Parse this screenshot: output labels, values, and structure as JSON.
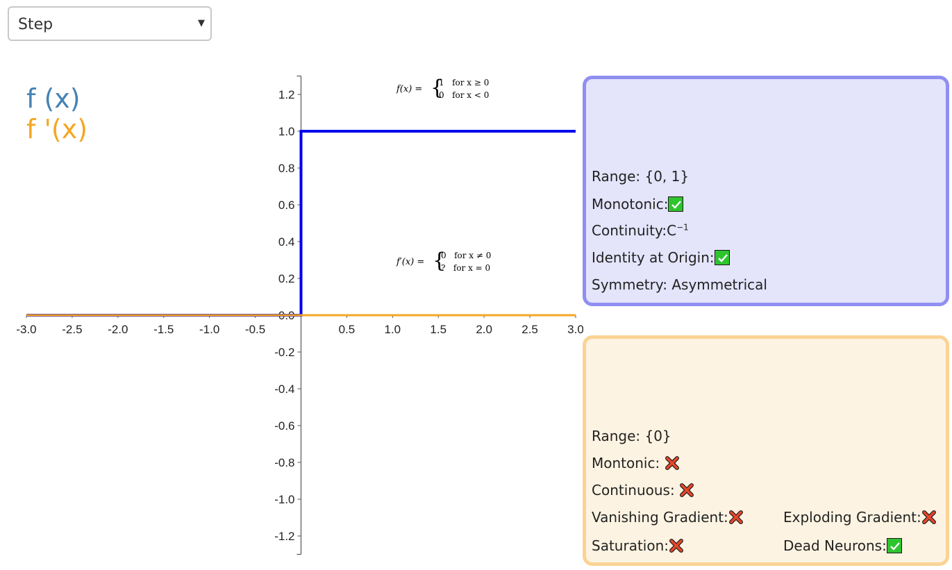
{
  "selector": {
    "value": "Step"
  },
  "legend": {
    "f": "f (x)",
    "fprime": "f '(x)"
  },
  "colors": {
    "f": "#0000ee",
    "fprime": "#f5a623",
    "legend_f": "#4682b4",
    "panel_f_border": "#8f8ff2",
    "panel_fp_border": "#fad394"
  },
  "formulas": {
    "f_lhs": "f(x) =",
    "f_case1": "1   for x ≥ 0",
    "f_case2": "0   for x < 0",
    "fp_lhs": "f′(x) =",
    "fp_case1": "0   for x ≠ 0",
    "fp_case2": "?   for x = 0"
  },
  "panel_f": {
    "range": "Range: {0, 1}",
    "monotonic": "Monotonic:",
    "continuity": "Continuity:C",
    "continuity_sup": "−1",
    "identity": "Identity at Origin:",
    "symmetry": "Symmetry: Asymmetrical"
  },
  "panel_fp": {
    "range": "Range: {0}",
    "monotonic": "Montonic: ",
    "continuous": "Continuous: ",
    "vanishing": "Vanishing Gradient:",
    "exploding": "Exploding Gradient:",
    "saturation": "Saturation:",
    "dead": "Dead Neurons:"
  },
  "chart_data": {
    "type": "line",
    "xlim": [
      -3.0,
      3.0
    ],
    "ylim": [
      -1.3,
      1.3
    ],
    "x_ticks": [
      "-3.0",
      "-2.5",
      "-2.0",
      "-1.5",
      "-1.0",
      "-0.5",
      "0.5",
      "1.0",
      "1.5",
      "2.0",
      "2.5",
      "3.0"
    ],
    "y_ticks": [
      "1.2",
      "1.0",
      "0.8",
      "0.6",
      "0.4",
      "0.2",
      "0.0",
      "-0.2",
      "-0.4",
      "-0.6",
      "-0.8",
      "-1.0",
      "-1.2"
    ],
    "series": [
      {
        "color": "#0000ee",
        "points": [
          [
            -3.0,
            0.0
          ],
          [
            0.0,
            0.0
          ],
          [
            0.0,
            1.0
          ],
          [
            3.0,
            1.0
          ]
        ]
      },
      {
        "color": "#f5a623",
        "points": [
          [
            -3.0,
            0.0
          ],
          [
            3.0,
            0.0
          ]
        ]
      }
    ]
  }
}
